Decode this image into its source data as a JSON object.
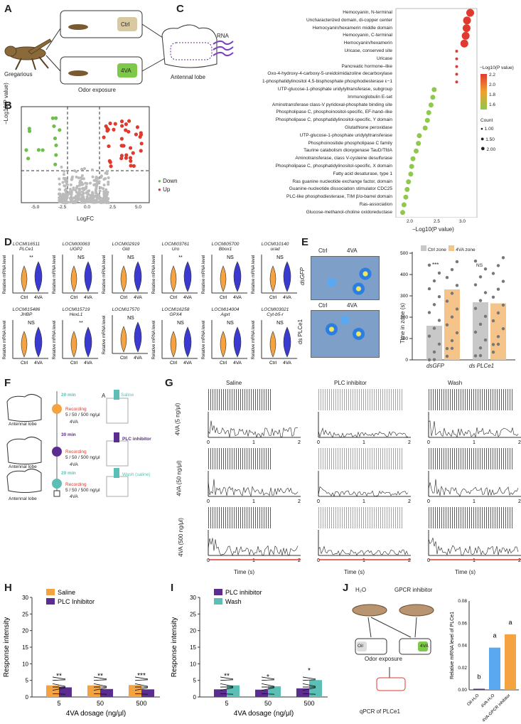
{
  "panelA": {
    "letter": "A",
    "label_gregarious": "Gregarious",
    "label_ctrl": "Ctrl",
    "label_4va": "4VA",
    "label_odor": "Odor exposure",
    "label_lobe": "Antennal lobe",
    "label_rna": "RNA"
  },
  "panelB": {
    "letter": "B",
    "ylabel": "−Log10(P value)",
    "xlabel": "LogFC",
    "legend_down": "Down",
    "legend_up": "Up",
    "xticks": [
      "-5.0",
      "-2.5",
      "0.0",
      "2.5",
      "5.0"
    ],
    "yticks": [
      "0",
      "1",
      "2",
      "3"
    ]
  },
  "panelC": {
    "letter": "C",
    "xlabel": "−Log10(P value)",
    "xticks": [
      "2.0",
      "2.5",
      "3.0"
    ],
    "legend_p": "−Log10(P value)",
    "legend_p_vals": [
      "2.2",
      "2.0",
      "1.8",
      "1.6"
    ],
    "legend_count": "Count",
    "legend_count_vals": [
      "1.00",
      "1.50",
      "2.00"
    ],
    "terms": [
      "Hemocyanin, N-terminal",
      "Uncharacterized domain, di-copper center",
      "Hemocyanin/hexamerin middle domain",
      "Hemocyanin, C-terminal",
      "Hemocyanin/hexamerin",
      "Uricase, conserved site",
      "Uricase",
      "Pancreatic hormone–like",
      "Oxo-4-hydroxy-4-carboxy-5-ureidoimidazoline decarboxylase",
      "1-phosphatidylinositol 4,5-bisphosphate phosphodiesterase ε−1",
      "UTP-glucose-1-phosphate uridylyltransferase, subgroup",
      "Immunoglobulin E-set",
      "Aminotransferase class-V pyridoxal-phosphate binding site",
      "Phospholipase C, phosphoinositol-specific, EF-hand–like",
      "Phospholipase C, phosphatidylinositol-specific, Y domain",
      "Glutathione peroxidase",
      "UTP-glucose-1-phosphate uridylyltransferase",
      "Phosphoinositide phospholipase C family",
      "Taurine catabolism dioxygenase TauD/TfdA",
      "Aminotransferase, class V-cysteine desulfurase",
      "Phospholipase C, phosphatidylinositol-specific, X domain",
      "Fatty acid desaturase, type 1",
      "Ras guanine nucleotide exchange factor, domain",
      "Guanine-nucleotide dissociation stimulator CDC25",
      "PLC-like phosphodiesterase, TIM β/α-barrel domain",
      "Ras-association",
      "Glucose-methanol-choline oxidoreductase"
    ]
  },
  "panelD": {
    "letter": "D",
    "ylabel": "Relative mRNA level",
    "ctrl": "Ctrl",
    "va": "4VA",
    "genes": [
      {
        "id": "LOCMI16511",
        "name": "PLCe1",
        "sig": "**"
      },
      {
        "id": "LOCMI00063",
        "name": "UGP2",
        "sig": "NS"
      },
      {
        "id": "LOCMI02919",
        "name": "Gld",
        "sig": "NS"
      },
      {
        "id": "LOCMI03761",
        "name": "Uro",
        "sig": "**"
      },
      {
        "id": "LOCMI05700",
        "name": "Bbox1",
        "sig": "NS"
      },
      {
        "id": "LOCMI10140",
        "name": "urad",
        "sig": "NS"
      },
      {
        "id": "LOCMI15486",
        "name": "JHBP",
        "sig": "NS"
      },
      {
        "id": "LOCMI15719",
        "name": "HexL1",
        "sig": "**"
      },
      {
        "id": "LOCMI17570",
        "name": "",
        "sig": "NS"
      },
      {
        "id": "LOCMI16258",
        "name": "GPX4",
        "sig": "NS"
      },
      {
        "id": "LOCMI14004",
        "name": "Agxt",
        "sig": "NS"
      },
      {
        "id": "LOCMI03021",
        "name": "Cyt-b5-r",
        "sig": "NS"
      }
    ]
  },
  "panelE": {
    "letter": "E",
    "ctrl": "Ctrl",
    "va": "4VA",
    "dsgfp": "dsGFP",
    "dsplce1": "ds PLCe1",
    "ylabel": "Time in zone (s)",
    "legend_ctrl": "Ctrl zone",
    "legend_va": "4VA zone",
    "sig1": "***",
    "sig2": "NS",
    "yticks": [
      "0",
      "100",
      "200",
      "300",
      "400",
      "500"
    ],
    "colors": {
      "ctrl": "#c8c8c8",
      "va": "#f5c48a"
    }
  },
  "panelF": {
    "letter": "F",
    "label_a": "A",
    "times": [
      "20 min",
      "30 min",
      "20 min"
    ],
    "recording": "Recording",
    "doses": "5 / 50 / 500 ng/μl",
    "va": "4VA",
    "lobe": "Antennal lobe",
    "electrode": "Electrode",
    "saline": "Saline",
    "plc": "PLC inhibitor",
    "wash": "Wash (saline)"
  },
  "panelG": {
    "letter": "G",
    "cols": [
      "Saline",
      "PLC inhibitor",
      "Wash"
    ],
    "rows": [
      "4VA (5 ng/μl)",
      "4VA (50 ng/μl)",
      "4VA (500 ng/μl)"
    ],
    "ylabel": "Counts/bin",
    "xlabel": "Time (s)",
    "xticks": [
      "0",
      "1",
      "2"
    ],
    "yticks": [
      "0",
      "5",
      "10"
    ]
  },
  "panelH": {
    "letter": "H",
    "legend1": "Saline",
    "legend2": "PLC Inhibitor",
    "ylabel": "Response intensity",
    "xlabel": "4VA dosage (ng/μl)",
    "cats": [
      "5",
      "50",
      "500"
    ],
    "sig": [
      "**",
      "**",
      "***"
    ],
    "yticks": [
      "0",
      "5",
      "10",
      "15",
      "20",
      "25",
      "30"
    ],
    "chart_data": {
      "type": "bar",
      "categories": [
        "5",
        "50",
        "500"
      ],
      "series": [
        {
          "name": "Saline",
          "values": [
            3.5,
            3.5,
            3.6
          ]
        },
        {
          "name": "PLC Inhibitor",
          "values": [
            2.9,
            2.4,
            2.3
          ]
        }
      ],
      "ylabel": "Response intensity",
      "xlabel": "4VA dosage (ng/μl)",
      "ylim": [
        0,
        30
      ]
    }
  },
  "panelI": {
    "letter": "I",
    "legend1": "PLC inhibitor",
    "legend2": "Wash",
    "ylabel": "Response intensity",
    "xlabel": "4VA dosage (ng/μl)",
    "cats": [
      "5",
      "50",
      "500"
    ],
    "sig": [
      "**",
      "*",
      "*"
    ],
    "yticks": [
      "0",
      "5",
      "10",
      "15",
      "20",
      "25",
      "30"
    ],
    "chart_data": {
      "type": "bar",
      "categories": [
        "5",
        "50",
        "500"
      ],
      "series": [
        {
          "name": "PLC inhibitor",
          "values": [
            2.3,
            2.2,
            2.6
          ]
        },
        {
          "name": "Wash",
          "values": [
            3.5,
            3.2,
            5.1
          ]
        }
      ],
      "ylabel": "Response intensity",
      "xlabel": "4VA dosage (ng/μl)",
      "ylim": [
        0,
        30
      ]
    }
  },
  "panelJ": {
    "letter": "J",
    "h2o": "H₂O",
    "gpcr": "GPCR inhibitor",
    "oil": "Oil",
    "va": "4VA",
    "odor": "Odor exposure",
    "qpcr": "qPCR of PLCe1",
    "ylabel": "Relative mRNA level of PLCe1",
    "cats": [
      "Oil-H₂O",
      "4VA-H₂O",
      "4VA-GPCR inhibitor"
    ],
    "letters": [
      "b",
      "a",
      "a"
    ],
    "yticks": [
      "0.00",
      "0.02",
      "0.04",
      "0.06",
      "0.08"
    ],
    "chart_data": {
      "type": "bar",
      "categories": [
        "Oil-H₂O",
        "4VA-H₂O",
        "4VA-GPCR inhibitor"
      ],
      "values": [
        0.001,
        0.038,
        0.05
      ],
      "ylim": [
        0,
        0.08
      ]
    }
  },
  "colors": {
    "orange": "#f4a340",
    "purple": "#5c2d91",
    "teal": "#5bbfb5",
    "red": "#e03a2e",
    "green": "#6cc04a",
    "blue": "#3a3ad0"
  }
}
